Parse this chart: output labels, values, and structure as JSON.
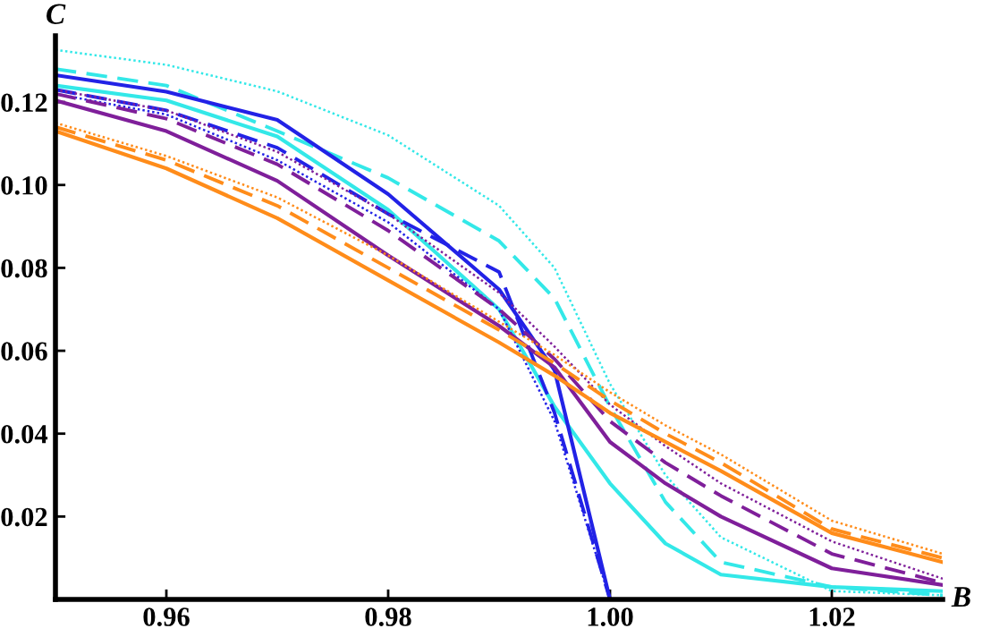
{
  "chart_data": {
    "type": "line",
    "xlabel": "B",
    "ylabel": "C",
    "x": [
      0.95,
      0.96,
      0.97,
      0.98,
      0.99,
      0.995,
      1.0,
      1.005,
      1.01,
      1.02,
      1.03
    ],
    "xlim": [
      0.95,
      1.03
    ],
    "ylim": [
      0,
      0.136
    ],
    "xticks": [
      0.96,
      0.98,
      {
        "value": 1.0,
        "label": "1.00"
      },
      1.02
    ],
    "yticks": [
      0.02,
      0.04,
      0.06,
      0.08,
      {
        "value": 0.1,
        "label": "0.10"
      },
      0.12
    ],
    "grid": false,
    "marker": "none",
    "series": [
      {
        "color": "#33e8e8",
        "line_style": "dotted",
        "values": [
          0.1326,
          0.129,
          0.1226,
          0.112,
          0.095,
          0.08,
          0.052,
          0.03,
          0.015,
          0.002,
          0.001
        ]
      },
      {
        "color": "#33e8e8",
        "line_style": "dashed",
        "values": [
          0.128,
          0.124,
          0.113,
          0.1017,
          0.0865,
          0.0726,
          0.0465,
          0.0235,
          0.009,
          0.003,
          0.001
        ]
      },
      {
        "color": "#33e8e8",
        "line_style": "solid",
        "values": [
          0.124,
          0.1204,
          0.1117,
          0.094,
          0.07,
          0.0465,
          0.028,
          0.0135,
          0.006,
          0.003,
          0.002
        ]
      },
      {
        "color": "#2222e6",
        "line_style": "solid",
        "values": [
          0.1265,
          0.1225,
          0.1157,
          0.0978,
          0.0748,
          0.0553,
          0,
          null,
          null,
          null,
          null
        ]
      },
      {
        "color": "#2222e6",
        "line_style": "dashed",
        "values": [
          0.123,
          0.118,
          0.109,
          0.093,
          0.079,
          0.045,
          0,
          null,
          null,
          null,
          null
        ]
      },
      {
        "color": "#2222e6",
        "line_style": "dotted",
        "values": [
          0.122,
          0.117,
          0.106,
          0.091,
          0.07,
          0.043,
          0,
          null,
          null,
          null,
          null
        ]
      },
      {
        "color": "#7f1f9a",
        "line_style": "solid",
        "values": [
          0.1204,
          0.113,
          0.101,
          0.083,
          0.066,
          0.056,
          0.038,
          0.028,
          0.02,
          0.0075,
          0.0035
        ]
      },
      {
        "color": "#7f1f9a",
        "line_style": "dashed",
        "values": [
          0.122,
          0.116,
          0.105,
          0.089,
          0.07,
          0.058,
          0.043,
          0.033,
          0.025,
          0.011,
          0.004
        ]
      },
      {
        "color": "#7f1f9a",
        "line_style": "dotted",
        "values": [
          0.123,
          0.118,
          0.108,
          0.093,
          0.074,
          0.061,
          0.047,
          0.037,
          0.028,
          0.014,
          0.005
        ]
      },
      {
        "color": "#ff8c1a",
        "line_style": "solid",
        "values": [
          0.113,
          0.104,
          0.092,
          0.077,
          0.062,
          0.054,
          0.045,
          0.038,
          0.031,
          0.016,
          0.009
        ]
      },
      {
        "color": "#ff8c1a",
        "line_style": "dashed",
        "values": [
          0.114,
          0.106,
          0.095,
          0.08,
          0.065,
          0.057,
          0.048,
          0.04,
          0.033,
          0.017,
          0.01
        ]
      },
      {
        "color": "#ff8c1a",
        "line_style": "dotted",
        "values": [
          0.115,
          0.107,
          0.097,
          0.083,
          0.067,
          0.059,
          0.05,
          0.042,
          0.035,
          0.019,
          0.011
        ]
      }
    ]
  }
}
